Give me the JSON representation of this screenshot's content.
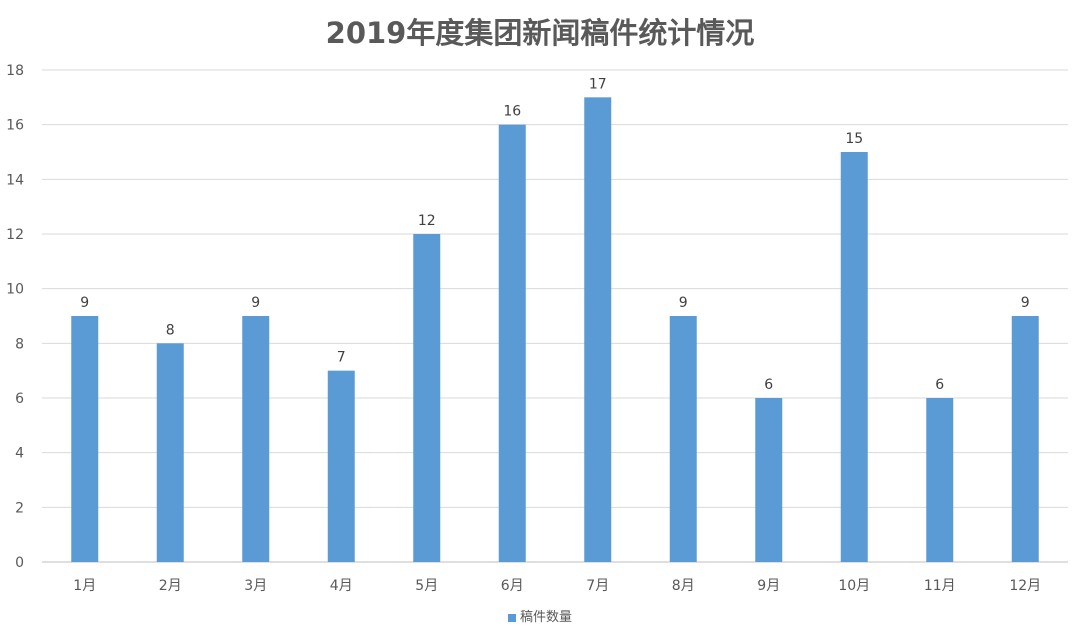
{
  "chart_data": {
    "type": "bar",
    "title": "2019年度集团新闻稿件统计情况",
    "categories": [
      "1月",
      "2月",
      "3月",
      "4月",
      "5月",
      "6月",
      "7月",
      "8月",
      "9月",
      "10月",
      "11月",
      "12月"
    ],
    "series": [
      {
        "name": "稿件数量",
        "values": [
          9,
          8,
          9,
          7,
          12,
          16,
          17,
          9,
          6,
          15,
          6,
          9
        ],
        "color": "#5b9bd5"
      }
    ],
    "ylim": [
      0,
      18
    ],
    "yticks": [
      0,
      2,
      4,
      6,
      8,
      10,
      12,
      14,
      16,
      18
    ],
    "xlabel": "",
    "ylabel": "",
    "grid": true,
    "legend": "bottom",
    "data_labels": true
  }
}
